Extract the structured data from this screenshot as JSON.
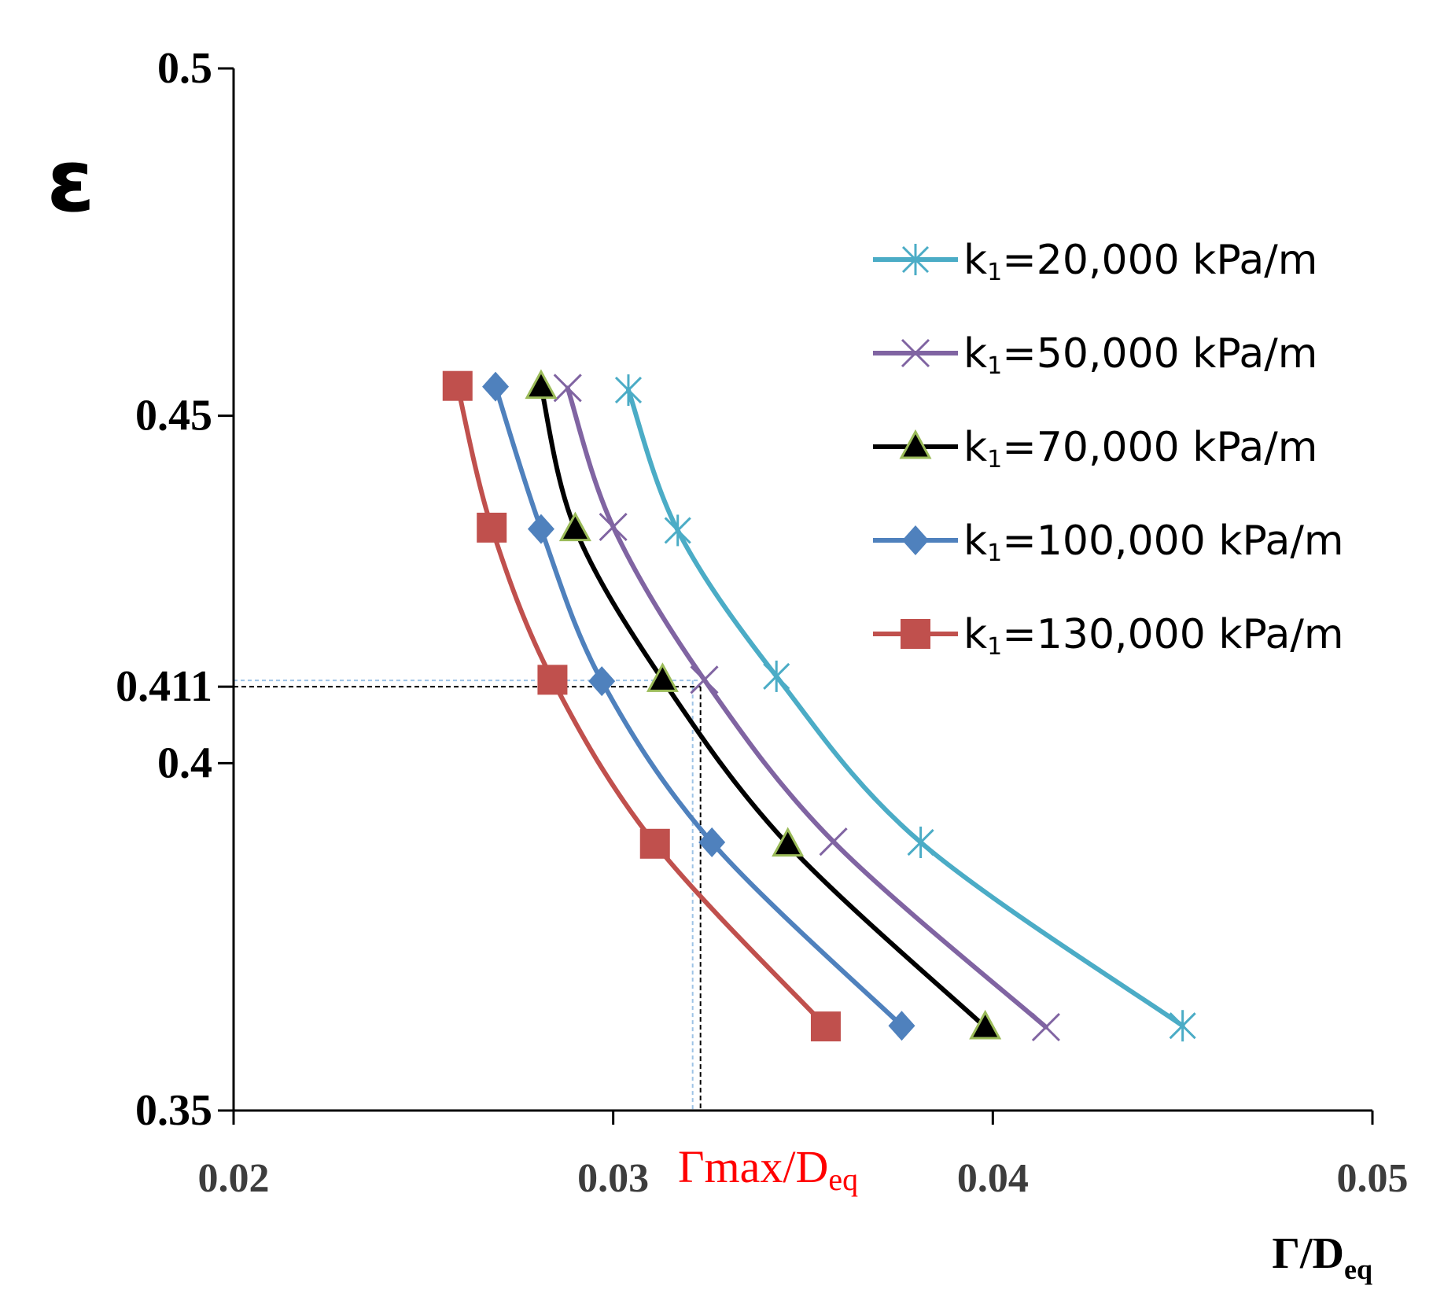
{
  "chart_data": {
    "type": "line",
    "title": "",
    "ylabel": "ε",
    "xlabel": {
      "main": "Γ/D",
      "sub": "eq"
    },
    "xlim": [
      0.02,
      0.05
    ],
    "ylim": [
      0.35,
      0.5
    ],
    "xticks": [
      {
        "value": 0.02,
        "label": "0.02"
      },
      {
        "value": 0.03,
        "label": "0.03"
      },
      {
        "value": 0.04,
        "label": "0.04"
      },
      {
        "value": 0.05,
        "label": "0.05"
      }
    ],
    "yticks": [
      {
        "value": 0.35,
        "label": "0.35"
      },
      {
        "value": 0.4,
        "label": "0.4"
      },
      {
        "value": 0.411,
        "label": "0.411"
      },
      {
        "value": 0.45,
        "label": "0.45"
      },
      {
        "value": 0.5,
        "label": "0.5"
      }
    ],
    "grid": false,
    "legend_position": "right",
    "series": [
      {
        "name": "k1=20,000 kPa/m",
        "legend": {
          "pre": "k",
          "sub": "1",
          "post": "=20,000 kPa/m"
        },
        "color": "#4bacc6",
        "marker": "asterisk",
        "points": [
          [
            0.0304,
            0.4537
          ],
          [
            0.0317,
            0.4335
          ],
          [
            0.0343,
            0.4125
          ],
          [
            0.0381,
            0.3886
          ],
          [
            0.045,
            0.3622
          ]
        ]
      },
      {
        "name": "k1=50,000 kPa/m",
        "legend": {
          "pre": "k",
          "sub": "1",
          "post": "=50,000 kPa/m"
        },
        "color": "#8064a2",
        "marker": "x",
        "points": [
          [
            0.0288,
            0.454
          ],
          [
            0.03,
            0.434
          ],
          [
            0.0324,
            0.412
          ],
          [
            0.0358,
            0.3887
          ],
          [
            0.0414,
            0.362
          ]
        ]
      },
      {
        "name": "k1=70,000 kPa/m",
        "legend": {
          "pre": "k",
          "sub": "1",
          "post": "=70,000 kPa/m"
        },
        "color": "#000000",
        "marker": "triangle",
        "points": [
          [
            0.0281,
            0.4542
          ],
          [
            0.029,
            0.4337
          ],
          [
            0.0313,
            0.412
          ],
          [
            0.0346,
            0.3883
          ],
          [
            0.0398,
            0.362
          ]
        ]
      },
      {
        "name": "k1=100,000 kPa/m",
        "legend": {
          "pre": "k",
          "sub": "1",
          "post": "=100,000 kPa/m"
        },
        "color": "#4f81bd",
        "marker": "diamond",
        "points": [
          [
            0.0269,
            0.4542
          ],
          [
            0.0281,
            0.4337
          ],
          [
            0.0297,
            0.4118
          ],
          [
            0.0326,
            0.3886
          ],
          [
            0.0376,
            0.3622
          ]
        ]
      },
      {
        "name": "k1=130,000 kPa/m",
        "legend": {
          "pre": "k",
          "sub": "1",
          "post": "=130,000 kPa/m"
        },
        "color": "#c0504d",
        "marker": "square",
        "points": [
          [
            0.0259,
            0.4543
          ],
          [
            0.0268,
            0.4339
          ],
          [
            0.0284,
            0.412
          ],
          [
            0.0311,
            0.3884
          ],
          [
            0.0356,
            0.3621
          ]
        ]
      }
    ],
    "annotation": {
      "epsilon": 0.411,
      "gamma_x": 0.0323,
      "label": {
        "main": "Γmax/D",
        "sub": "eq"
      },
      "color": "#ff0000"
    }
  }
}
